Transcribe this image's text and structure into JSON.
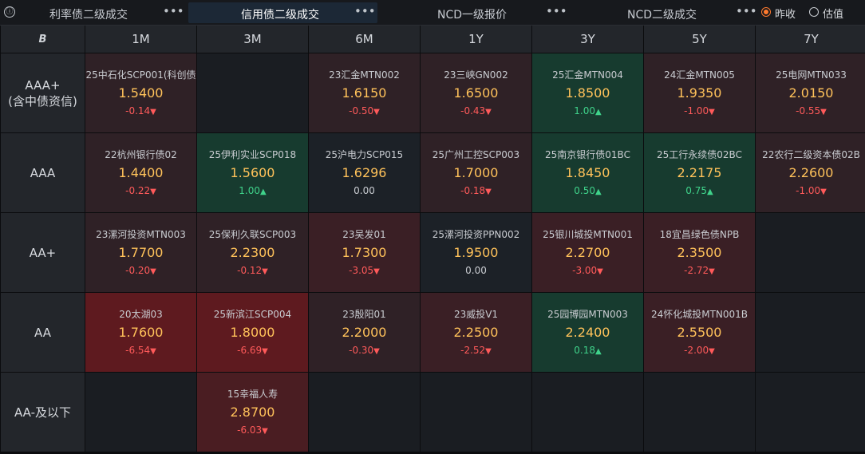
{
  "tabs": [
    {
      "label": "利率债二级成交",
      "more": "•••",
      "active": false
    },
    {
      "label": "信用债二级成交",
      "more": "•••",
      "active": true
    },
    {
      "label": "NCD一级报价",
      "more": "•••",
      "active": false
    },
    {
      "label": "NCD二级成交",
      "more": "•••",
      "active": false
    }
  ],
  "info_icon": "ⓘ",
  "radios": [
    {
      "label": "昨收",
      "checked": true
    },
    {
      "label": "估值",
      "checked": false
    }
  ],
  "corner_icon": "B",
  "columns": [
    "1M",
    "3M",
    "6M",
    "1Y",
    "3Y",
    "5Y",
    "7Y"
  ],
  "rows": [
    {
      "label_lines": [
        "AAA+",
        "(含中债资信)"
      ]
    },
    {
      "label_lines": [
        "AAA"
      ]
    },
    {
      "label_lines": [
        "AA+"
      ]
    },
    {
      "label_lines": [
        "AA"
      ]
    },
    {
      "label_lines": [
        "AA-及以下"
      ]
    }
  ],
  "cells": [
    [
      {
        "name": "25中石化SCP001(科创债",
        "value": "1.5400",
        "change": "-0.14",
        "dir": "down",
        "tone": "red1"
      },
      null,
      {
        "name": "23汇金MTN002",
        "value": "1.6150",
        "change": "-0.50",
        "dir": "down",
        "tone": "red1"
      },
      {
        "name": "23三峡GN002",
        "value": "1.6500",
        "change": "-0.43",
        "dir": "down",
        "tone": "red1"
      },
      {
        "name": "25汇金MTN004",
        "value": "1.8500",
        "change": "1.00",
        "dir": "up",
        "tone": "green1"
      },
      {
        "name": "24汇金MTN005",
        "value": "1.9350",
        "change": "-1.00",
        "dir": "down",
        "tone": "red1"
      },
      {
        "name": "25电网MTN033",
        "value": "2.0150",
        "change": "-0.55",
        "dir": "down",
        "tone": "red1"
      }
    ],
    [
      {
        "name": "22杭州银行债02",
        "value": "1.4400",
        "change": "-0.22",
        "dir": "down",
        "tone": "red1"
      },
      {
        "name": "25伊利实业SCP018",
        "value": "1.5600",
        "change": "1.00",
        "dir": "up",
        "tone": "green1"
      },
      {
        "name": "25沪电力SCP015",
        "value": "1.6296",
        "change": "0.00",
        "dir": "flat",
        "tone": "neutral"
      },
      {
        "name": "25广州工控SCP003",
        "value": "1.7000",
        "change": "-0.18",
        "dir": "down",
        "tone": "red1"
      },
      {
        "name": "25南京银行债01BC",
        "value": "1.8450",
        "change": "0.50",
        "dir": "up",
        "tone": "green1"
      },
      {
        "name": "25工行永续债02BC",
        "value": "2.2175",
        "change": "0.75",
        "dir": "up",
        "tone": "green1"
      },
      {
        "name": "22农行二级资本债02B",
        "value": "2.2600",
        "change": "-1.00",
        "dir": "down",
        "tone": "red1"
      }
    ],
    [
      {
        "name": "23漯河投资MTN003",
        "value": "1.7700",
        "change": "-0.20",
        "dir": "down",
        "tone": "red1"
      },
      {
        "name": "25保利久联SCP003",
        "value": "2.2300",
        "change": "-0.12",
        "dir": "down",
        "tone": "red1"
      },
      {
        "name": "23吴发01",
        "value": "1.7300",
        "change": "-3.05",
        "dir": "down",
        "tone": "red2"
      },
      {
        "name": "25漯河投资PPN002",
        "value": "1.9500",
        "change": "0.00",
        "dir": "flat",
        "tone": "neutral"
      },
      {
        "name": "25银川城投MTN001",
        "value": "2.2700",
        "change": "-3.00",
        "dir": "down",
        "tone": "red2"
      },
      {
        "name": "18宜昌绿色债NPB",
        "value": "2.3500",
        "change": "-2.72",
        "dir": "down",
        "tone": "red2"
      },
      null
    ],
    [
      {
        "name": "20太湖03",
        "value": "1.7600",
        "change": "-6.54",
        "dir": "down",
        "tone": "red4"
      },
      {
        "name": "25新滨江SCP004",
        "value": "1.8000",
        "change": "-6.69",
        "dir": "down",
        "tone": "red4"
      },
      {
        "name": "23殷阳01",
        "value": "2.2000",
        "change": "-0.30",
        "dir": "down",
        "tone": "red1"
      },
      {
        "name": "23威投V1",
        "value": "2.2500",
        "change": "-2.52",
        "dir": "down",
        "tone": "red2"
      },
      {
        "name": "25园博园MTN003",
        "value": "2.2400",
        "change": "0.18",
        "dir": "up",
        "tone": "green1"
      },
      {
        "name": "24怀化城投MTN001B",
        "value": "2.5500",
        "change": "-2.00",
        "dir": "down",
        "tone": "red2"
      },
      null
    ],
    [
      null,
      {
        "name": "15幸福人寿",
        "value": "2.8700",
        "change": "-6.03",
        "dir": "down",
        "tone": "red3"
      },
      null,
      null,
      null,
      null,
      null
    ]
  ],
  "colors": {
    "value": "#ffc25a",
    "down": "#ff5a5a",
    "up": "#3fd28a",
    "radio_checked": "#ff7a2e"
  }
}
